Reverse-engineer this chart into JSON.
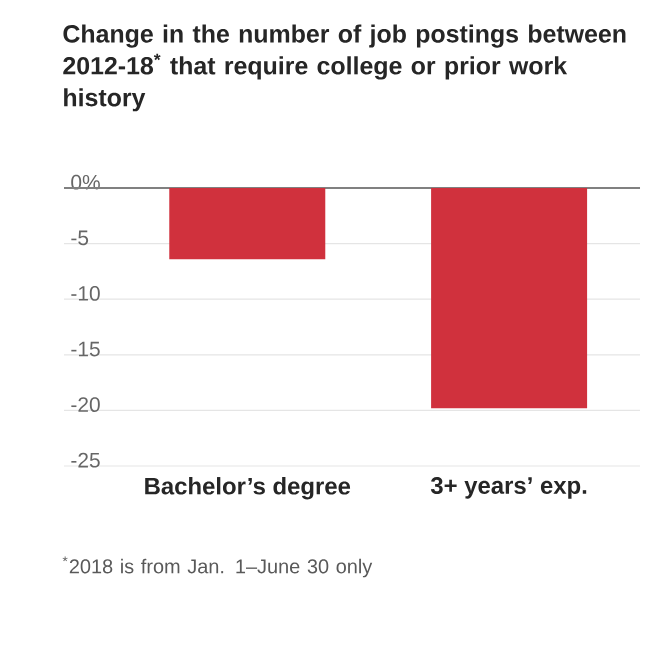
{
  "chart_data": {
    "type": "bar",
    "title": "Change in the number of job postings between 2012-18$^{*}$ that require college or prior work history",
    "categories": [
      "Bachelor’s degree",
      "3+ years’ exp."
    ],
    "values": [
      -6.4,
      -19.8
    ],
    "color": "#d0313d",
    "ylim": [
      -25,
      0
    ],
    "yticks": [
      {
        "value": 0,
        "label": "0%"
      },
      -5,
      -10,
      -15,
      -20,
      -25
    ],
    "grid": "y",
    "annotations": [
      "$^{*}$2018 is from Jan. 1–June 30 only"
    ]
  }
}
